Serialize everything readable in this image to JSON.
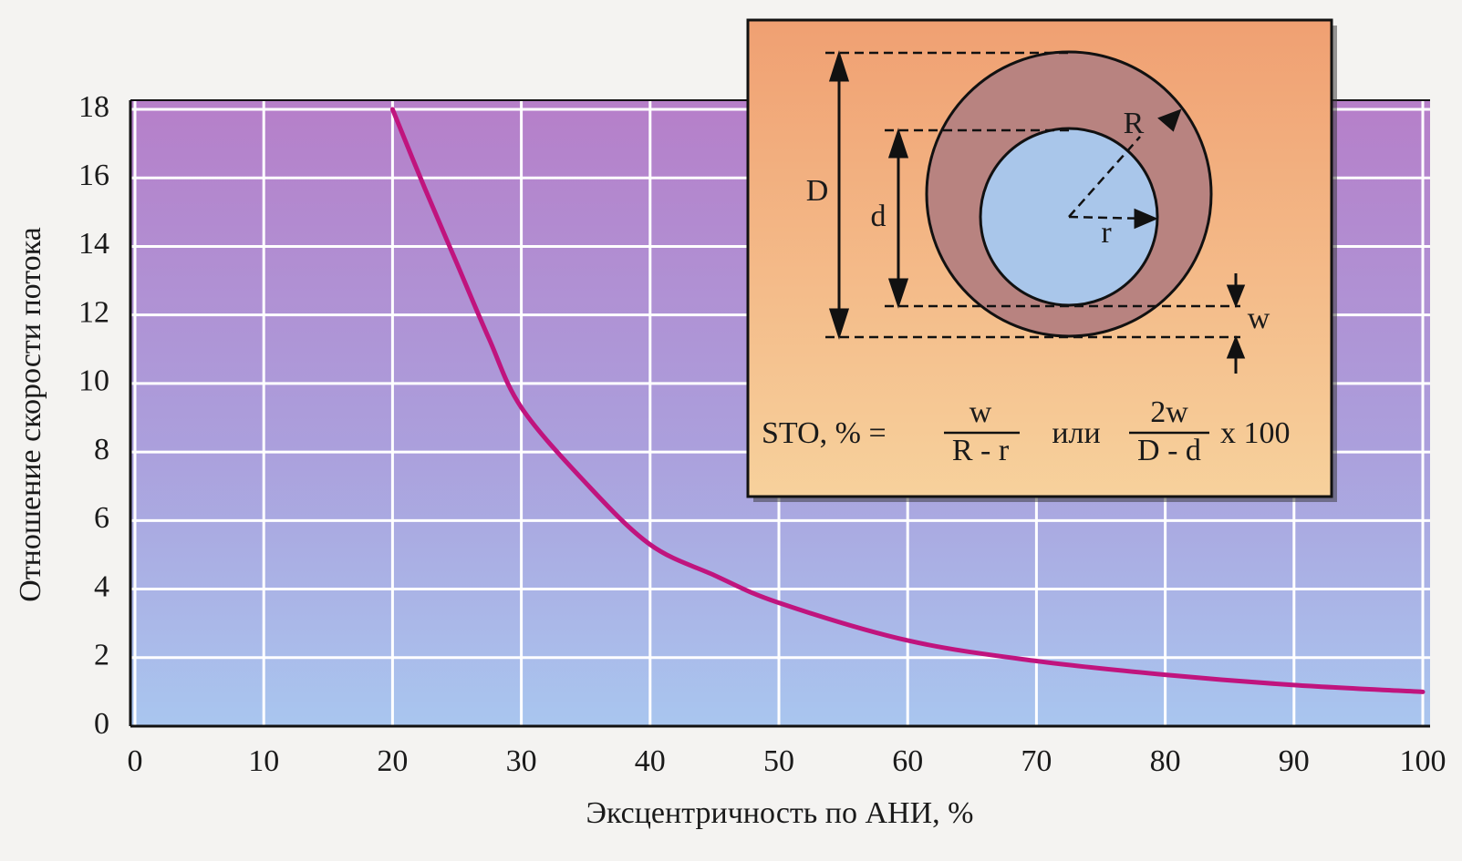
{
  "chart_data": {
    "type": "line",
    "x_label": "Эксцентричность по АНИ, %",
    "y_label": "Отношение скорости потока",
    "x": [
      20,
      22.5,
      25,
      27.5,
      30,
      35,
      40,
      45,
      50,
      60,
      70,
      80,
      90,
      100
    ],
    "series": [
      {
        "name": "Отношение скорости потока",
        "color": "#c0147e",
        "values": [
          18,
          15.7,
          13.5,
          11.3,
          9.3,
          7.1,
          5.3,
          4.4,
          3.6,
          2.5,
          1.9,
          1.5,
          1.2,
          1.0
        ]
      }
    ],
    "xlim": [
      0,
      100
    ],
    "xticks": [
      0,
      10,
      20,
      30,
      40,
      50,
      60,
      70,
      80,
      90,
      100
    ],
    "ylim": [
      0,
      18
    ],
    "yticks": [
      0,
      2,
      4,
      6,
      8,
      10,
      12,
      14,
      16,
      18
    ],
    "grid": true
  },
  "inset": {
    "labels": {
      "D": "D",
      "d": "d",
      "R": "R",
      "r": "r",
      "w": "w"
    },
    "formula": {
      "lhs": "STO, % =",
      "num1": "w",
      "den1": "R - r",
      "or": "или",
      "num2": "2w",
      "den2": "D - d",
      "tail": "x 100"
    }
  }
}
